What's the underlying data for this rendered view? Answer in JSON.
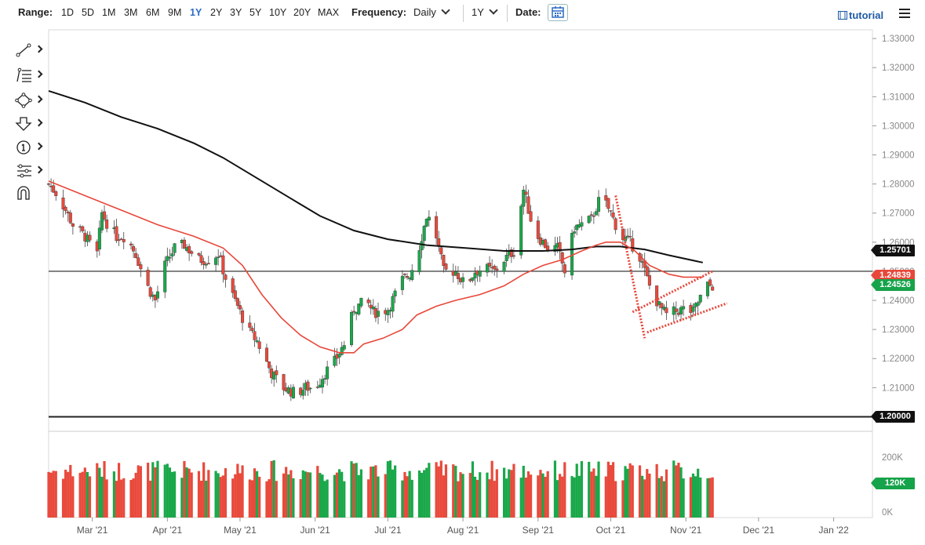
{
  "toolbar": {
    "range_label": "Range:",
    "ranges": [
      "1D",
      "5D",
      "1M",
      "3M",
      "6M",
      "9M",
      "1Y",
      "2Y",
      "3Y",
      "5Y",
      "10Y",
      "20Y",
      "MAX"
    ],
    "active_range": "1Y",
    "frequency_label": "Frequency:",
    "frequency_value": "Daily",
    "period_value": "1Y",
    "date_label": "Date:",
    "tutorial_label": "tutorial"
  },
  "tools": [
    "trend-line-icon",
    "fibonacci-icon",
    "shapes-icon",
    "arrow-down-icon",
    "annotation-icon",
    "indicators-icon",
    "magnet-icon"
  ],
  "colors": {
    "up": "#1aa84a",
    "down": "#e84a3c",
    "ma_fast": "#e8473a",
    "ma_slow": "#111111",
    "label_dark": "#111111",
    "label_green": "#16a34a",
    "label_red": "#e8473a",
    "pattern": "#e8473a"
  },
  "chart_data": {
    "type": "candlestick",
    "y_axis": {
      "min": 1.195,
      "max": 1.333,
      "ticks": [
        "1.33000",
        "1.32000",
        "1.31000",
        "1.30000",
        "1.29000",
        "1.28000",
        "1.27000",
        "1.26000",
        "1.25000",
        "1.24000",
        "1.23000",
        "1.22000",
        "1.21000",
        "1.20000"
      ]
    },
    "x_axis": {
      "labels": [
        "Mar '21",
        "Apr '21",
        "May '21",
        "Jun '21",
        "Jul '21",
        "Aug '21",
        "Sep '21",
        "Oct '21",
        "Nov '21",
        "Dec '21",
        "Jan '22"
      ],
      "label_days": [
        18,
        49,
        79,
        110,
        140,
        171,
        202,
        232,
        263,
        293,
        324
      ]
    },
    "days_end": 340,
    "ohlc_anchors": [
      [
        0,
        1.28
      ],
      [
        4,
        1.276
      ],
      [
        10,
        1.266
      ],
      [
        15,
        1.262
      ],
      [
        18,
        1.258
      ],
      [
        20,
        1.256
      ],
      [
        22,
        1.27
      ],
      [
        25,
        1.265
      ],
      [
        28,
        1.262
      ],
      [
        32,
        1.262
      ],
      [
        36,
        1.256
      ],
      [
        40,
        1.246
      ],
      [
        44,
        1.24
      ],
      [
        48,
        1.252
      ],
      [
        52,
        1.258
      ],
      [
        56,
        1.259
      ],
      [
        62,
        1.254
      ],
      [
        66,
        1.254
      ],
      [
        70,
        1.256
      ],
      [
        74,
        1.245
      ],
      [
        78,
        1.238
      ],
      [
        82,
        1.23
      ],
      [
        86,
        1.226
      ],
      [
        92,
        1.215
      ],
      [
        97,
        1.21
      ],
      [
        102,
        1.208
      ],
      [
        106,
        1.21
      ],
      [
        110,
        1.21
      ],
      [
        114,
        1.215
      ],
      [
        118,
        1.219
      ],
      [
        122,
        1.225
      ],
      [
        126,
        1.237
      ],
      [
        131,
        1.24
      ],
      [
        134,
        1.236
      ],
      [
        137,
        1.236
      ],
      [
        140,
        1.237
      ],
      [
        143,
        1.242
      ],
      [
        146,
        1.247
      ],
      [
        149,
        1.249
      ],
      [
        152,
        1.255
      ],
      [
        156,
        1.269
      ],
      [
        159,
        1.266
      ],
      [
        163,
        1.25
      ],
      [
        168,
        1.25
      ],
      [
        172,
        1.245
      ],
      [
        176,
        1.25
      ],
      [
        180,
        1.251
      ],
      [
        184,
        1.25
      ],
      [
        188,
        1.254
      ],
      [
        192,
        1.257
      ],
      [
        196,
        1.278
      ],
      [
        199,
        1.268
      ],
      [
        202,
        1.262
      ],
      [
        206,
        1.258
      ],
      [
        210,
        1.258
      ],
      [
        213,
        1.25
      ],
      [
        217,
        1.265
      ],
      [
        220,
        1.266
      ],
      [
        224,
        1.268
      ],
      [
        228,
        1.276
      ],
      [
        232,
        1.27
      ],
      [
        236,
        1.262
      ],
      [
        240,
        1.26
      ],
      [
        244,
        1.255
      ],
      [
        248,
        1.245
      ],
      [
        252,
        1.238
      ],
      [
        255,
        1.235
      ],
      [
        258,
        1.236
      ],
      [
        262,
        1.237
      ],
      [
        266,
        1.236
      ],
      [
        269,
        1.241
      ],
      [
        272,
        1.245
      ],
      [
        274,
        1.245
      ]
    ],
    "volume_axis": {
      "ticks": [
        "200K",
        "0K"
      ],
      "tick_values": [
        200000,
        0
      ],
      "max": 270000
    },
    "volume_last": "120K",
    "ma_fast": [
      [
        0,
        1.281
      ],
      [
        15,
        1.276
      ],
      [
        30,
        1.271
      ],
      [
        45,
        1.266
      ],
      [
        60,
        1.262
      ],
      [
        72,
        1.258
      ],
      [
        80,
        1.252
      ],
      [
        88,
        1.242
      ],
      [
        96,
        1.234
      ],
      [
        104,
        1.228
      ],
      [
        112,
        1.224
      ],
      [
        120,
        1.222
      ],
      [
        126,
        1.222
      ],
      [
        130,
        1.225
      ],
      [
        138,
        1.227
      ],
      [
        146,
        1.23
      ],
      [
        152,
        1.235
      ],
      [
        160,
        1.238
      ],
      [
        168,
        1.24
      ],
      [
        178,
        1.242
      ],
      [
        188,
        1.245
      ],
      [
        196,
        1.249
      ],
      [
        204,
        1.252
      ],
      [
        212,
        1.254
      ],
      [
        220,
        1.257
      ],
      [
        226,
        1.259
      ],
      [
        230,
        1.26
      ],
      [
        236,
        1.26
      ],
      [
        242,
        1.257
      ],
      [
        248,
        1.252
      ],
      [
        256,
        1.249
      ],
      [
        262,
        1.248
      ],
      [
        270,
        1.248
      ]
    ],
    "ma_slow": [
      [
        0,
        1.312
      ],
      [
        15,
        1.308
      ],
      [
        30,
        1.303
      ],
      [
        45,
        1.299
      ],
      [
        60,
        1.294
      ],
      [
        72,
        1.289
      ],
      [
        86,
        1.282
      ],
      [
        100,
        1.275
      ],
      [
        112,
        1.269
      ],
      [
        126,
        1.264
      ],
      [
        140,
        1.261
      ],
      [
        156,
        1.259
      ],
      [
        172,
        1.258
      ],
      [
        188,
        1.257
      ],
      [
        204,
        1.257
      ],
      [
        216,
        1.2575
      ],
      [
        226,
        1.2585
      ],
      [
        236,
        1.2585
      ],
      [
        246,
        1.2575
      ],
      [
        256,
        1.2555
      ],
      [
        270,
        1.253
      ]
    ],
    "horizontal_lines": [
      1.25,
      1.2
    ],
    "pattern_lines": [
      [
        [
          234,
          1.276
        ],
        [
          246,
          1.227
        ]
      ],
      [
        [
          241,
          1.236
        ],
        [
          274,
          1.25
        ]
      ],
      [
        [
          247,
          1.229
        ],
        [
          280,
          1.239
        ]
      ]
    ],
    "price_labels": [
      {
        "value": 1.25701,
        "text": "1.25701",
        "style": "dark"
      },
      {
        "value": 1.24839,
        "text": "1.24839",
        "style": "red"
      },
      {
        "value": 1.24526,
        "text": "1.24526",
        "style": "green"
      },
      {
        "value": 1.2,
        "text": "1.20000",
        "style": "dark"
      }
    ]
  }
}
